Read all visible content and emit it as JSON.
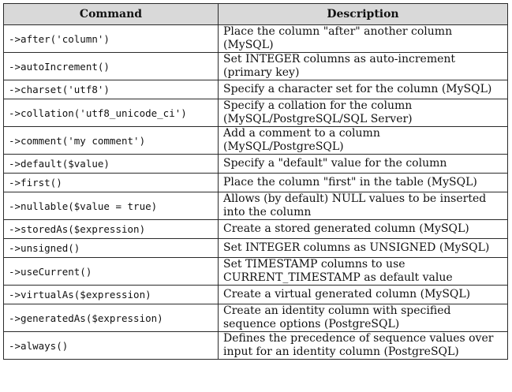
{
  "table": {
    "headers": {
      "command": "Command",
      "description": "Description"
    },
    "rows": [
      {
        "command": "->after('column')",
        "description": "Place the column \"after\" another column (MySQL)"
      },
      {
        "command": "->autoIncrement()",
        "description": "Set INTEGER columns as auto-increment (primary key)"
      },
      {
        "command": "->charset('utf8')",
        "description": "Specify a character set for the column (MySQL)"
      },
      {
        "command": "->collation('utf8_unicode_ci')",
        "description": "Specify a collation for the column (MySQL/PostgreSQL/SQL Server)"
      },
      {
        "command": "->comment('my comment')",
        "description": "Add a comment to a column (MySQL/PostgreSQL)"
      },
      {
        "command": "->default($value)",
        "description": "Specify a \"default\" value for the column"
      },
      {
        "command": "->first()",
        "description": "Place the column \"first\" in the table (MySQL)"
      },
      {
        "command": "->nullable($value = true)",
        "description": "Allows (by default) NULL values to be inserted into the column"
      },
      {
        "command": "->storedAs($expression)",
        "description": "Create a stored generated column (MySQL)"
      },
      {
        "command": "->unsigned()",
        "description": "Set INTEGER columns as UNSIGNED (MySQL)"
      },
      {
        "command": "->useCurrent()",
        "description": "Set TIMESTAMP columns to use CURRENT_TIMESTAMP as default value"
      },
      {
        "command": "->virtualAs($expression)",
        "description": "Create a virtual generated column (MySQL)"
      },
      {
        "command": "->generatedAs($expression)",
        "description": "Create an identity column with specified sequence options (PostgreSQL)"
      },
      {
        "command": "->always()",
        "description": "Defines the precedence of sequence values over input for an identity column (PostgreSQL)"
      }
    ]
  }
}
